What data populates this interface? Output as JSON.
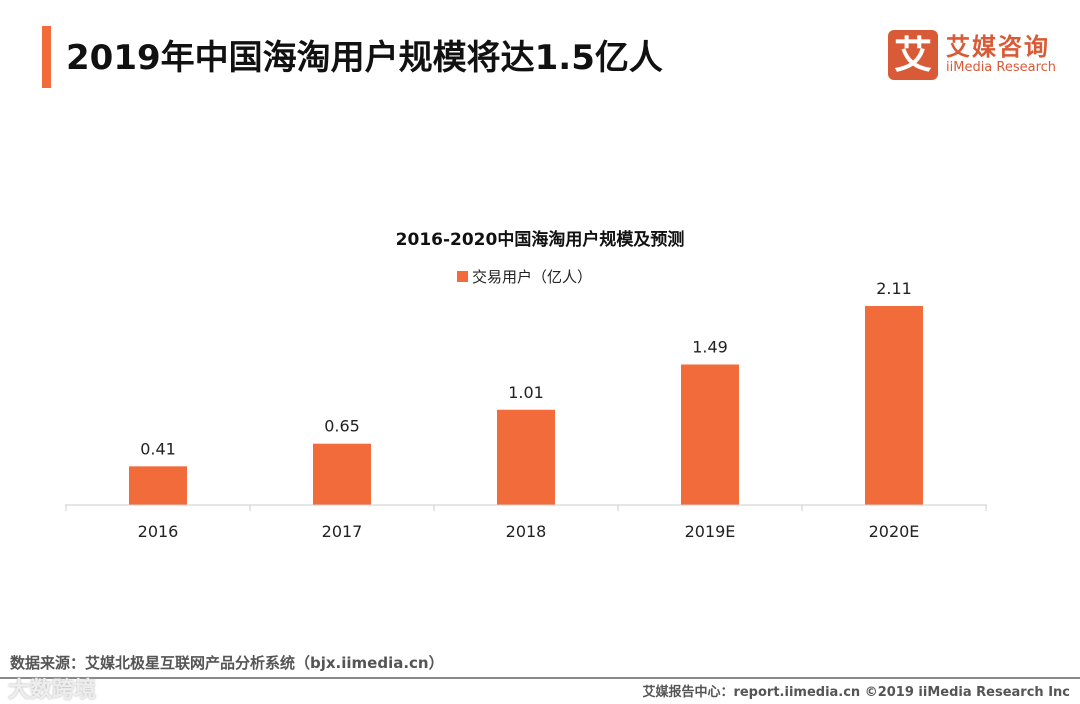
{
  "header": {
    "title": "2019年中国海淘用户规模将达1.5亿人",
    "logo_icon": "艾",
    "logo_cn": "艾媒咨询",
    "logo_en": "iiMedia Research"
  },
  "chart_data": {
    "type": "bar",
    "title": "2016-2020中国海淘用户规模及预测",
    "legend": [
      "交易用户（亿人）"
    ],
    "legend_position": "top-center",
    "categories": [
      "2016",
      "2017",
      "2018",
      "2019E",
      "2020E"
    ],
    "values": [
      0.41,
      0.65,
      1.01,
      1.49,
      2.11
    ],
    "data_labels": [
      "0.41",
      "0.65",
      "1.01",
      "1.49",
      "2.11"
    ],
    "ylim": [
      0,
      2.2
    ],
    "grid": false,
    "color": "#f26b3a"
  },
  "footer": {
    "source": "数据来源：艾媒北极星互联网产品分析系统（bjx.iimedia.cn）",
    "watermark": "大数跨境",
    "report": "艾媒报告中心：report.iimedia.cn ©2019 iiMedia Research Inc"
  }
}
